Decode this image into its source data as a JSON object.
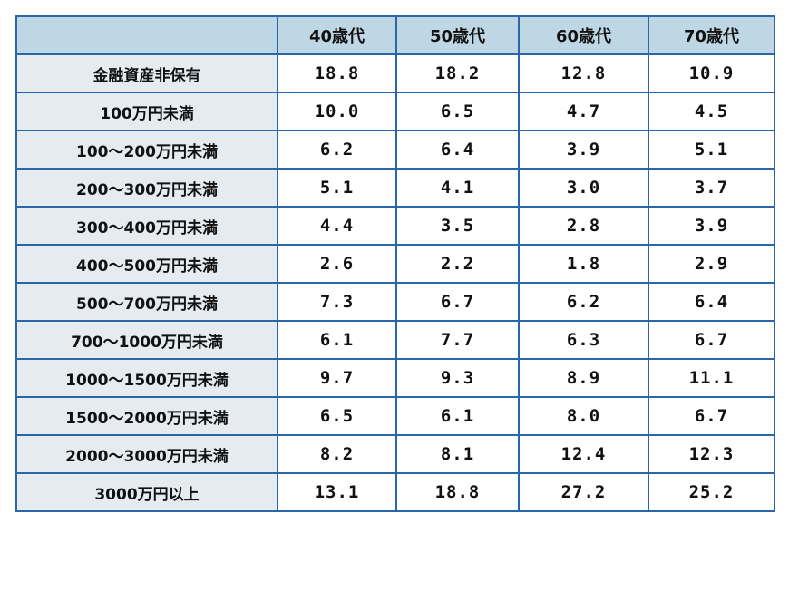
{
  "chart_data": {
    "type": "table",
    "corner_label": "",
    "columns": [
      "40歳代",
      "50歳代",
      "60歳代",
      "70歳代"
    ],
    "rows": [
      {
        "label": "金融資産非保有",
        "values": [
          "18.8",
          "18.2",
          "12.8",
          "10.9"
        ]
      },
      {
        "label": "100万円未満",
        "values": [
          "10.0",
          "6.5",
          "4.7",
          "4.5"
        ]
      },
      {
        "label": "100〜200万円未満",
        "values": [
          "6.2",
          "6.4",
          "3.9",
          "5.1"
        ]
      },
      {
        "label": "200〜300万円未満",
        "values": [
          "5.1",
          "4.1",
          "3.0",
          "3.7"
        ]
      },
      {
        "label": "300〜400万円未満",
        "values": [
          "4.4",
          "3.5",
          "2.8",
          "3.9"
        ]
      },
      {
        "label": "400〜500万円未満",
        "values": [
          "2.6",
          "2.2",
          "1.8",
          "2.9"
        ]
      },
      {
        "label": "500〜700万円未満",
        "values": [
          "7.3",
          "6.7",
          "6.2",
          "6.4"
        ]
      },
      {
        "label": "700〜1000万円未満",
        "values": [
          "6.1",
          "7.7",
          "6.3",
          "6.7"
        ]
      },
      {
        "label": "1000〜1500万円未満",
        "values": [
          "9.7",
          "9.3",
          "8.9",
          "11.1"
        ]
      },
      {
        "label": "1500〜2000万円未満",
        "values": [
          "6.5",
          "6.1",
          "8.0",
          "6.7"
        ]
      },
      {
        "label": "2000〜3000万円未満",
        "values": [
          "8.2",
          "8.1",
          "12.4",
          "12.3"
        ]
      },
      {
        "label": "3000万円以上",
        "values": [
          "13.1",
          "18.8",
          "27.2",
          "25.2"
        ]
      }
    ],
    "colors": {
      "border": "#2a67a8",
      "header_bg": "#bfd6e4",
      "label_bg": "#e5ebef",
      "value_bg": "#ffffff"
    }
  }
}
